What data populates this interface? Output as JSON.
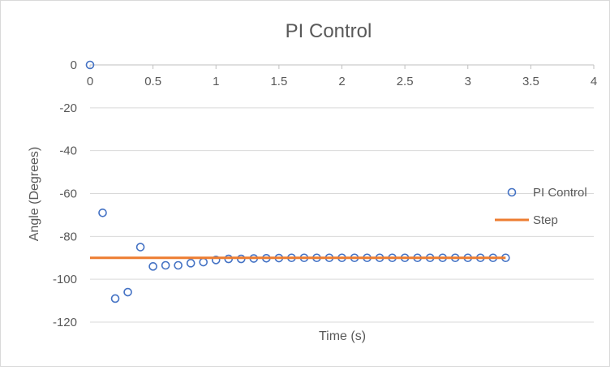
{
  "chart_data": {
    "type": "scatter",
    "title": "PI Control",
    "xlabel": "Time (s)",
    "ylabel": "Angle (Degrees)",
    "xlim": [
      0,
      4
    ],
    "ylim": [
      -120,
      0
    ],
    "x_ticks": [
      0,
      0.5,
      1,
      1.5,
      2,
      2.5,
      3,
      3.5,
      4
    ],
    "x_tick_labels": [
      "0",
      "0.5",
      "1",
      "1.5",
      "2",
      "2.5",
      "3",
      "3.5",
      "4"
    ],
    "y_ticks": [
      0,
      -20,
      -40,
      -60,
      -80,
      -100,
      -120
    ],
    "y_tick_labels": [
      "0",
      "-20",
      "-40",
      "-60",
      "-80",
      "-100",
      "-120"
    ],
    "grid": "horizontal",
    "legend_position": "right",
    "series": [
      {
        "name": "PI Control",
        "kind": "markers",
        "color": "#4472c4",
        "marker": "hollow-circle",
        "x": [
          0,
          0.1,
          0.2,
          0.3,
          0.4,
          0.5,
          0.6,
          0.7,
          0.8,
          0.9,
          1.0,
          1.1,
          1.2,
          1.3,
          1.4,
          1.5,
          1.6,
          1.7,
          1.8,
          1.9,
          2.0,
          2.1,
          2.2,
          2.3,
          2.4,
          2.5,
          2.6,
          2.7,
          2.8,
          2.9,
          3.0,
          3.1,
          3.2,
          3.3
        ],
        "y": [
          0,
          -69,
          -109,
          -106,
          -85,
          -94,
          -93.5,
          -93.5,
          -92.5,
          -92,
          -91,
          -90.5,
          -90.5,
          -90.3,
          -90.2,
          -90.1,
          -90,
          -90,
          -90,
          -90,
          -90,
          -90,
          -90,
          -90,
          -90,
          -90,
          -90,
          -90,
          -90,
          -90,
          -90,
          -90,
          -90,
          -90
        ]
      },
      {
        "name": "Step",
        "kind": "line",
        "color": "#ed7d31",
        "x": [
          0,
          3.3
        ],
        "y": [
          -90,
          -90
        ]
      }
    ]
  }
}
